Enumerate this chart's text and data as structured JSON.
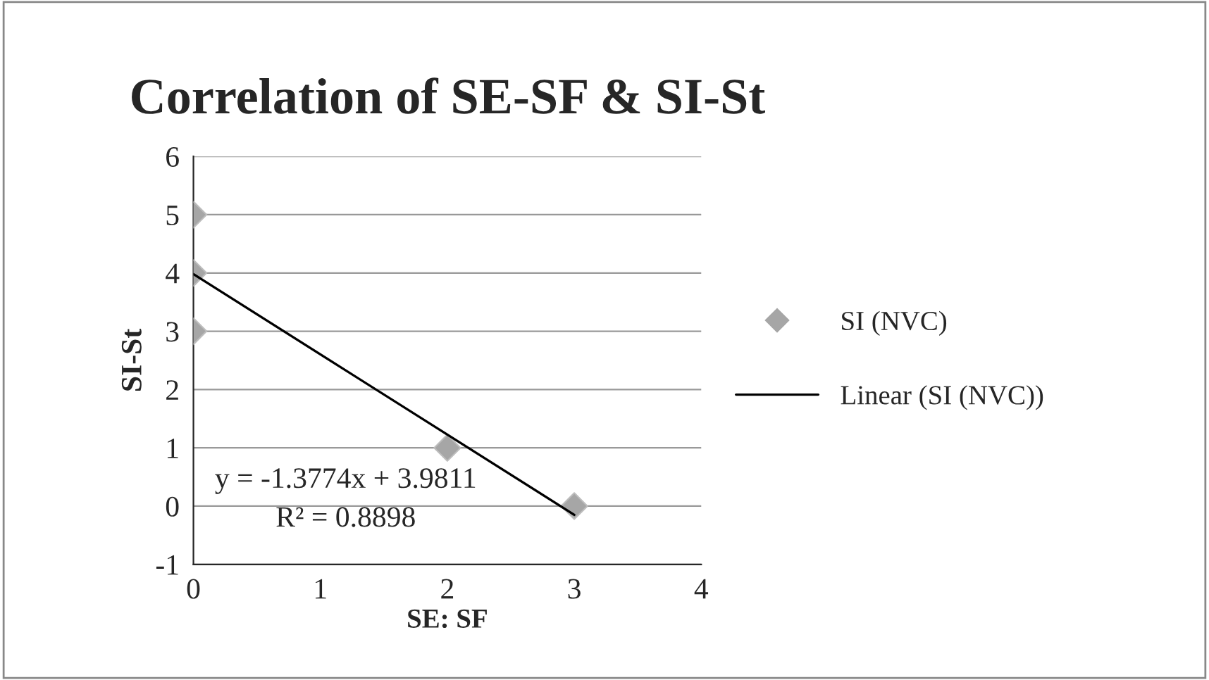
{
  "chart_data": {
    "type": "scatter",
    "title": "Correlation of SE-SF & SI-St",
    "xlabel": "SE: SF",
    "ylabel": "SI-St",
    "series": [
      {
        "name": "SI (NVC)",
        "color": "#a6a6a6",
        "marker": "diamond",
        "x": [
          0,
          0,
          0,
          2,
          3
        ],
        "values": [
          5,
          4,
          3,
          1,
          0
        ]
      },
      {
        "name": "Linear (SI (NVC))",
        "type": "line",
        "color": "#000000",
        "marker": "none",
        "line_style": "solid",
        "x": [
          0,
          3
        ],
        "values": [
          3.98,
          -0.15
        ]
      }
    ],
    "xlim": [
      0,
      4
    ],
    "xticks": [
      0,
      1,
      2,
      3,
      4
    ],
    "ylim": [
      -1,
      6
    ],
    "yticks": [
      -1,
      0,
      1,
      2,
      3,
      4,
      5,
      6
    ],
    "grid": "y",
    "legend": "right",
    "annotations": [
      "y = -1.3774x + 3.9811",
      "R² = 0.8898"
    ]
  }
}
